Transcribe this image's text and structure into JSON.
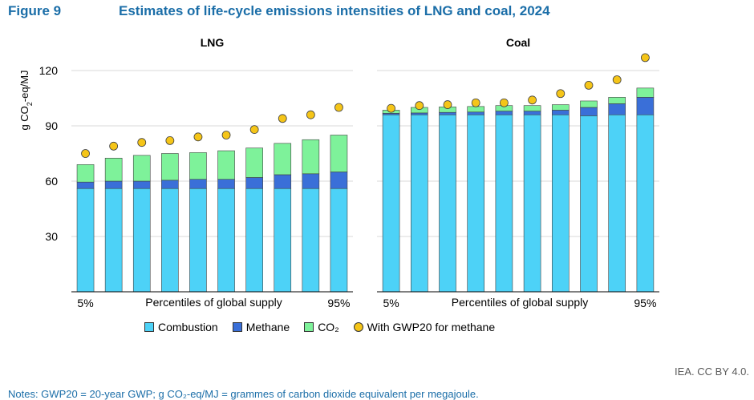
{
  "header": {
    "figure_number": "Figure 9",
    "title": "Estimates of life-cycle emissions intensities of LNG and coal, 2024"
  },
  "colors": {
    "combustion": "#4dd2f7",
    "methane": "#3a6fd8",
    "co2": "#7ef29a",
    "gwp20": "#f5c518",
    "title": "#1b6ea8"
  },
  "chart_data": [
    {
      "type": "bar",
      "stacked": true,
      "title": "LNG",
      "ylabel": "g CO2-eq/MJ",
      "xlabel": "Percentiles of global supply",
      "x_tick_labels": [
        "5%",
        "95%"
      ],
      "ylim": [
        0,
        130
      ],
      "yticks": [
        30,
        60,
        90,
        120
      ],
      "categories": [
        "1",
        "2",
        "3",
        "4",
        "5",
        "6",
        "7",
        "8",
        "9",
        "10"
      ],
      "series": [
        {
          "name": "Combustion",
          "values": [
            56,
            56,
            56,
            56,
            56,
            56,
            56,
            56,
            56,
            56
          ]
        },
        {
          "name": "Methane",
          "values": [
            3.5,
            4,
            4,
            4.5,
            5,
            5,
            6,
            7.5,
            8,
            9
          ]
        },
        {
          "name": "CO2",
          "values": [
            9.5,
            12.5,
            14,
            14.5,
            14.5,
            15.5,
            16,
            17,
            18.5,
            20
          ]
        }
      ],
      "gwp20_series": {
        "name": "With GWP20 for methane",
        "values": [
          75,
          79,
          81,
          82,
          84,
          85,
          88,
          94,
          96,
          100
        ]
      }
    },
    {
      "type": "bar",
      "stacked": true,
      "title": "Coal",
      "ylabel": "g CO2-eq/MJ",
      "xlabel": "Percentiles of global supply",
      "x_tick_labels": [
        "5%",
        "95%"
      ],
      "ylim": [
        0,
        130
      ],
      "yticks": [
        30,
        60,
        90,
        120
      ],
      "categories": [
        "1",
        "2",
        "3",
        "4",
        "5",
        "6",
        "7",
        "8",
        "9",
        "10"
      ],
      "series": [
        {
          "name": "Combustion",
          "values": [
            96,
            96,
            96,
            96,
            96,
            96,
            96,
            95.5,
            96,
            96
          ]
        },
        {
          "name": "Methane",
          "values": [
            0.8,
            1,
            1.3,
            1.5,
            2,
            2,
            2.5,
            4.5,
            6,
            9.5
          ]
        },
        {
          "name": "CO2",
          "values": [
            1.7,
            3,
            3,
            3,
            3,
            3,
            3,
            3.5,
            3.5,
            5
          ]
        }
      ],
      "gwp20_series": {
        "name": "With GWP20 for methane",
        "values": [
          99.5,
          101,
          101.5,
          102.5,
          102.5,
          104,
          107.5,
          112,
          115,
          127
        ]
      }
    }
  ],
  "legend": {
    "combustion": "Combustion",
    "methane": "Methane",
    "co2": "CO₂",
    "gwp20": "With GWP20 for methane"
  },
  "credit": "IEA. CC BY 4.0.",
  "notes": "Notes: GWP20 = 20-year GWP; g CO₂-eq/MJ = grammes of carbon dioxide equivalent per megajoule."
}
